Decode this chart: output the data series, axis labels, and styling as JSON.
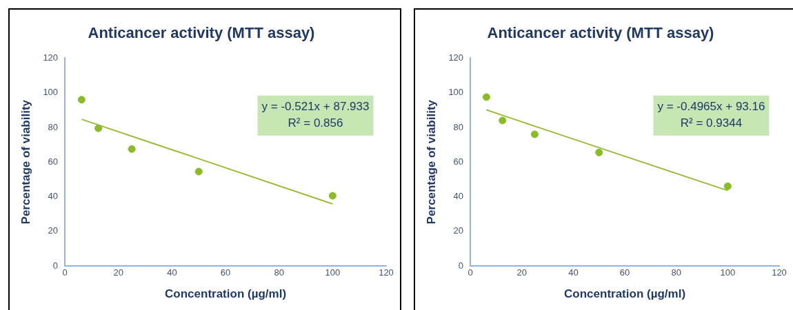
{
  "chart_data": [
    {
      "type": "scatter",
      "title": "Anticancer activity (MTT assay)",
      "xlabel": "Concentration (µg/ml)",
      "ylabel": "Percentage of viability",
      "x": [
        6.25,
        12.5,
        25,
        50,
        100
      ],
      "xlim": [
        0,
        120
      ],
      "xticks": [
        0,
        20,
        40,
        60,
        80,
        100,
        120
      ],
      "ylim": [
        0,
        120
      ],
      "yticks": [
        0,
        20,
        40,
        60,
        80,
        100,
        120
      ],
      "grid": false,
      "legend": false,
      "marker": "circle",
      "series": [
        {
          "color": "#8cbb2a",
          "values": [
            96,
            79.5,
            67.5,
            54.5,
            40.5
          ]
        },
        {
          "type": "line",
          "color": "#9bbb3b",
          "marker": "none",
          "values": [
            84.7,
            81.4,
            74.9,
            61.9,
            35.8
          ]
        }
      ],
      "annotations": [
        "y = -0.521x + 87.933",
        "R² = 0.856"
      ]
    },
    {
      "type": "scatter",
      "title": "Anticancer activity (MTT assay)",
      "xlabel": "Concentration (µg/ml)",
      "ylabel": "Percentage of viability",
      "x": [
        6.25,
        12.5,
        25,
        50,
        100
      ],
      "xlim": [
        0,
        120
      ],
      "xticks": [
        0,
        20,
        40,
        60,
        80,
        100,
        120
      ],
      "ylim": [
        0,
        120
      ],
      "yticks": [
        0,
        20,
        40,
        60,
        80,
        100,
        120
      ],
      "grid": false,
      "legend": false,
      "marker": "circle",
      "series": [
        {
          "color": "#8cbb2a",
          "values": [
            97.5,
            84,
            76,
            65.5,
            46
          ]
        },
        {
          "type": "line",
          "color": "#9bbb3b",
          "marker": "none",
          "values": [
            90.1,
            87,
            80.7,
            68.3,
            43.5
          ]
        }
      ],
      "annotations": [
        "y = -0.4965x + 93.16",
        "R² = 0.9344"
      ]
    }
  ]
}
